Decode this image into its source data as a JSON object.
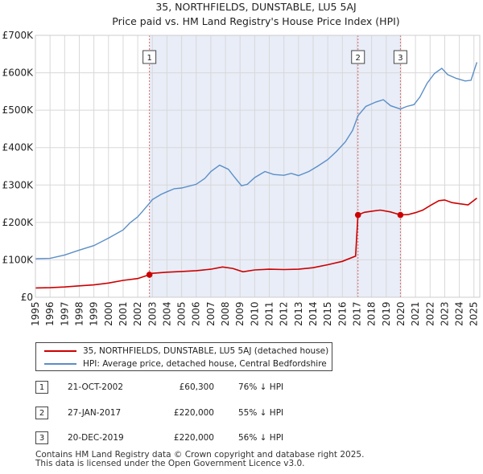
{
  "chart_data": {
    "type": "line",
    "title": "35, NORTHFIELDS, DUNSTABLE, LU5 5AJ",
    "subtitle": "Price paid vs. HM Land Registry's House Price Index (HPI)",
    "xlim": [
      1995,
      2025.4
    ],
    "ylim": [
      0,
      700000
    ],
    "y_ticks": [
      {
        "value": 0,
        "label": "£0"
      },
      {
        "value": 100000,
        "label": "£100K"
      },
      {
        "value": 200000,
        "label": "£200K"
      },
      {
        "value": 300000,
        "label": "£300K"
      },
      {
        "value": 400000,
        "label": "£400K"
      },
      {
        "value": 500000,
        "label": "£500K"
      },
      {
        "value": 600000,
        "label": "£600K"
      },
      {
        "value": 700000,
        "label": "£700K"
      }
    ],
    "x_ticks": [
      "1995",
      "1996",
      "1997",
      "1998",
      "1999",
      "2000",
      "2001",
      "2002",
      "2003",
      "2004",
      "2005",
      "2006",
      "2007",
      "2008",
      "2009",
      "2010",
      "2011",
      "2012",
      "2013",
      "2014",
      "2015",
      "2016",
      "2017",
      "2018",
      "2019",
      "2020",
      "2021",
      "2022",
      "2023",
      "2024",
      "2025"
    ],
    "shaded_range": [
      2002.8,
      2019.97
    ],
    "markers": [
      {
        "label": "1",
        "x": 2002.8
      },
      {
        "label": "2",
        "x": 2017.07
      },
      {
        "label": "3",
        "x": 2019.97
      }
    ],
    "series": [
      {
        "name": "35, NORTHFIELDS, DUNSTABLE, LU5 5AJ (detached house)",
        "color": "#cc0000",
        "points": [
          [
            1995,
            25000
          ],
          [
            1996,
            25500
          ],
          [
            1997,
            27500
          ],
          [
            1998,
            30500
          ],
          [
            1999,
            33000
          ],
          [
            2000,
            38000
          ],
          [
            2001,
            45000
          ],
          [
            2002,
            50000
          ],
          [
            2002.8,
            60300
          ],
          [
            2003,
            64000
          ],
          [
            2004,
            67000
          ],
          [
            2005,
            69000
          ],
          [
            2006,
            71000
          ],
          [
            2007,
            75000
          ],
          [
            2007.8,
            81000
          ],
          [
            2008.5,
            77000
          ],
          [
            2009.2,
            68000
          ],
          [
            2010,
            73000
          ],
          [
            2011,
            75000
          ],
          [
            2012,
            74000
          ],
          [
            2013,
            75000
          ],
          [
            2014,
            79000
          ],
          [
            2015,
            87000
          ],
          [
            2016,
            96000
          ],
          [
            2016.9,
            110000
          ],
          [
            2017.07,
            220000
          ],
          [
            2017.5,
            227000
          ],
          [
            2018,
            230000
          ],
          [
            2018.6,
            233000
          ],
          [
            2019.3,
            228000
          ],
          [
            2019.97,
            220000
          ],
          [
            2020.5,
            221000
          ],
          [
            2021,
            226000
          ],
          [
            2021.5,
            233000
          ],
          [
            2022,
            245000
          ],
          [
            2022.6,
            258000
          ],
          [
            2023,
            260000
          ],
          [
            2023.5,
            253000
          ],
          [
            2024,
            250000
          ],
          [
            2024.6,
            247000
          ],
          [
            2025.2,
            265000
          ]
        ]
      },
      {
        "name": "HPI: Average price, detached house, Central Bedfordshire",
        "color": "#5b8ec7",
        "points": [
          [
            1995,
            103000
          ],
          [
            1996,
            104000
          ],
          [
            1997,
            113000
          ],
          [
            1998,
            126000
          ],
          [
            1999,
            138000
          ],
          [
            2000,
            158000
          ],
          [
            2001,
            180000
          ],
          [
            2001.5,
            200000
          ],
          [
            2002,
            215000
          ],
          [
            2002.8,
            251000
          ],
          [
            2003,
            261000
          ],
          [
            2003.6,
            275000
          ],
          [
            2004,
            282000
          ],
          [
            2004.5,
            290000
          ],
          [
            2005,
            292000
          ],
          [
            2006,
            302000
          ],
          [
            2006.6,
            318000
          ],
          [
            2007,
            336000
          ],
          [
            2007.6,
            353000
          ],
          [
            2008.2,
            342000
          ],
          [
            2008.6,
            322000
          ],
          [
            2009.1,
            298000
          ],
          [
            2009.5,
            302000
          ],
          [
            2010,
            320000
          ],
          [
            2010.7,
            336000
          ],
          [
            2011.3,
            328000
          ],
          [
            2012,
            326000
          ],
          [
            2012.5,
            331000
          ],
          [
            2013,
            325000
          ],
          [
            2013.7,
            336000
          ],
          [
            2014.3,
            350000
          ],
          [
            2015,
            368000
          ],
          [
            2015.6,
            390000
          ],
          [
            2016.2,
            415000
          ],
          [
            2016.7,
            446000
          ],
          [
            2017.07,
            485000
          ],
          [
            2017.6,
            510000
          ],
          [
            2018.3,
            522000
          ],
          [
            2018.8,
            528000
          ],
          [
            2019.3,
            512000
          ],
          [
            2019.97,
            503000
          ],
          [
            2020.4,
            510000
          ],
          [
            2020.9,
            515000
          ],
          [
            2021.3,
            535000
          ],
          [
            2021.8,
            572000
          ],
          [
            2022.3,
            598000
          ],
          [
            2022.8,
            612000
          ],
          [
            2023.2,
            595000
          ],
          [
            2023.8,
            585000
          ],
          [
            2024.4,
            578000
          ],
          [
            2024.8,
            580000
          ],
          [
            2025.2,
            628000
          ]
        ]
      }
    ]
  },
  "legend": {
    "items": [
      {
        "label": "35, NORTHFIELDS, DUNSTABLE, LU5 5AJ (detached house)",
        "color": "#cc0000"
      },
      {
        "label": "HPI: Average price, detached house, Central Bedfordshire",
        "color": "#5b8ec7"
      }
    ]
  },
  "sales": [
    {
      "num": "1",
      "date": "21-OCT-2002",
      "price": "£60,300",
      "hpi": "76% ↓ HPI"
    },
    {
      "num": "2",
      "date": "27-JAN-2017",
      "price": "£220,000",
      "hpi": "55% ↓ HPI"
    },
    {
      "num": "3",
      "date": "20-DEC-2019",
      "price": "£220,000",
      "hpi": "56% ↓ HPI"
    }
  ],
  "footer": {
    "line1": "Contains HM Land Registry data © Crown copyright and database right 2025.",
    "line2": "This data is licensed under the Open Government Licence v3.0."
  }
}
